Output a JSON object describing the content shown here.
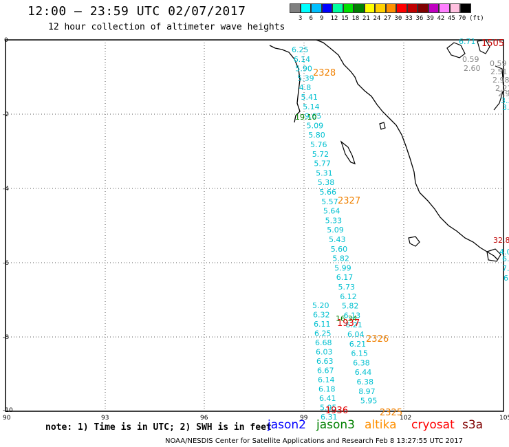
{
  "header": {
    "title": "12:00 — 23:59 UTC 02/07/2017",
    "subtitle": "12 hour collection of altimeter wave heights"
  },
  "colorbar": {
    "colors": [
      "#808080",
      "#00ffff",
      "#00c0ff",
      "#0000ff",
      "#00ffa0",
      "#00e000",
      "#008000",
      "#ffff00",
      "#ffd000",
      "#ff9000",
      "#ff0000",
      "#c00000",
      "#800000",
      "#c000c0",
      "#ff80ff",
      "#ffc0e0",
      "#000000"
    ],
    "labels": [
      "3",
      "6",
      "9",
      "12",
      "15",
      "18",
      "21",
      "24",
      "27",
      "30",
      "33",
      "36",
      "39",
      "42",
      "45",
      "70",
      "(ft)"
    ]
  },
  "axes": {
    "y_ticks": [
      "0",
      "-2",
      "-4",
      "-6",
      "-8",
      "-10"
    ],
    "x_ticks": [
      "90",
      "93",
      "96",
      "99",
      "102",
      "105"
    ]
  },
  "track_labels": {
    "main_track_swh": [
      "6.25",
      "6.14",
      "5.90",
      "5.39",
      "4.8",
      "5.41",
      "5.14",
      "9.65",
      "5.09",
      "5.80",
      "5.76",
      "5.72",
      "5.77",
      "5.31",
      "5.38",
      "5.66",
      "5.57",
      "5.64",
      "5.33",
      "5.09",
      "5.43",
      "5.60",
      "5.82",
      "5.99",
      "6.17",
      "5.73",
      "6.12",
      "5.82",
      "6.13",
      "6.21",
      "6.04",
      "6.21",
      "6.15",
      "6.38",
      "6.44",
      "6.38",
      "8.97",
      "5.95"
    ],
    "left_track_swh": [
      "5.20",
      "6.32",
      "6.11",
      "6.25",
      "6.68",
      "6.03",
      "6.63",
      "6.67",
      "6.14",
      "6.18",
      "6.41",
      "5.95",
      "6.31"
    ],
    "green_values": [
      "19.10",
      "16.34"
    ],
    "east_swh": [
      "6.71",
      "0.59",
      "2.60",
      "0.59",
      "2.51",
      "2.98",
      "2.21",
      "2.9",
      "3.3",
      "3."
    ],
    "east_edge": [
      "4.0",
      "6.",
      "7.",
      "6."
    ],
    "pass_ids_altika": [
      "2328",
      "2327",
      "2326",
      "2325"
    ],
    "pass_ids_cryosat": [
      "1937",
      "1936",
      "1505",
      "32.8"
    ]
  },
  "note": "note: 1) Time is in UTC; 2) SWH is in feet",
  "legend": [
    {
      "label": "jason2",
      "color": "#0000ff"
    },
    {
      "label": "jason3",
      "color": "#008000"
    },
    {
      "label": "altika",
      "color": "#ff9000"
    },
    {
      "label": "cryosat",
      "color": "#ff0000"
    },
    {
      "label": "s3a",
      "color": "#800000"
    }
  ],
  "footer": "NOAA/NESDIS Center for Satellite Applications and Research   Feb  8 13:27:55 UTC 2017"
}
